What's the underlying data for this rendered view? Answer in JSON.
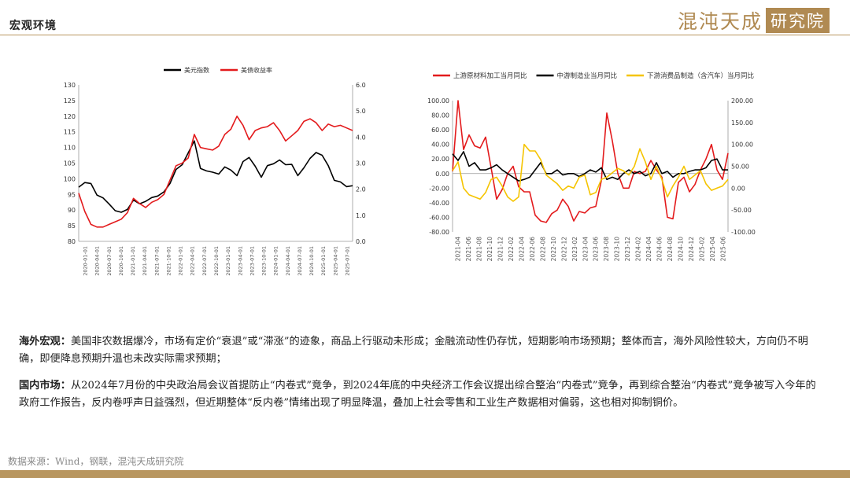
{
  "header": {
    "title": "宏观环境",
    "brand_name": "混沌天成",
    "brand_box": "研究院"
  },
  "chart_data": [
    {
      "type": "line",
      "title": "",
      "legend_position": "top-center",
      "grid": false,
      "y_left": {
        "min": 80,
        "max": 130,
        "ticks": [
          80,
          85,
          90,
          95,
          100,
          105,
          110,
          115,
          120,
          125,
          130
        ]
      },
      "y_right": {
        "min": 0,
        "max": 6,
        "ticks": [
          "0.0",
          "1.0",
          "2.0",
          "3.0",
          "4.0",
          "5.0",
          "6.0"
        ]
      },
      "x_labels": [
        "2020-01-01",
        "2020-04-01",
        "2020-07-01",
        "2020-10-01",
        "2021-01-01",
        "2021-04-01",
        "2021-07-01",
        "2021-10-01",
        "2022-01-01",
        "2022-04-01",
        "2022-07-01",
        "2022-10-01",
        "2023-01-01",
        "2023-04-01",
        "2023-07-01",
        "2023-10-01",
        "2024-01-01",
        "2024-04-01",
        "2024-07-01",
        "2024-10-01",
        "2025-01-01",
        "2025-04-01",
        "2025-07-01"
      ],
      "series": [
        {
          "name": "美元指数",
          "color": "#000000",
          "axis": "left",
          "values": [
            97.3,
            98.8,
            98.5,
            94.8,
            93.9,
            91.9,
            89.8,
            89.3,
            90.2,
            93.2,
            92.0,
            92.8,
            94.0,
            94.5,
            95.8,
            98.5,
            103.0,
            104.5,
            108.3,
            112.1,
            103.3,
            102.5,
            102.1,
            101.5,
            103.8,
            102.8,
            101.0,
            105.5,
            106.8,
            104.0,
            100.5,
            104.2,
            104.8,
            106.0,
            104.5,
            104.6,
            101.0,
            103.5,
            106.5,
            108.4,
            107.5,
            104.2,
            99.5,
            99.0,
            97.5,
            97.8
          ]
        },
        {
          "name": "美债收益率",
          "color": "#e31a1c",
          "axis": "right",
          "values": [
            1.85,
            1.15,
            0.65,
            0.55,
            0.55,
            0.65,
            0.75,
            0.85,
            1.1,
            1.65,
            1.45,
            1.3,
            1.5,
            1.6,
            1.8,
            2.35,
            2.9,
            3.0,
            3.2,
            4.1,
            3.6,
            3.55,
            3.5,
            3.65,
            4.1,
            4.3,
            4.8,
            4.45,
            3.9,
            4.25,
            4.35,
            4.4,
            4.55,
            4.25,
            3.85,
            4.05,
            4.25,
            4.6,
            4.7,
            4.55,
            4.25,
            4.5,
            4.4,
            4.45,
            4.35,
            4.25
          ]
        }
      ]
    },
    {
      "type": "line",
      "title": "",
      "legend_position": "top",
      "grid": false,
      "y_left": {
        "min": -80,
        "max": 100,
        "ticks": [
          "-80.00",
          "-60.00",
          "-40.00",
          "-20.00",
          "0.00",
          "20.00",
          "40.00",
          "60.00",
          "80.00",
          "100.00"
        ]
      },
      "y_right": {
        "min": -100,
        "max": 200,
        "ticks": [
          "-100.00",
          "-50.00",
          "0.00",
          "50.00",
          "100.00",
          "150.00",
          "200.00"
        ]
      },
      "x_labels": [
        "2021-04",
        "2021-06",
        "2021-08",
        "2021-10",
        "2021-12",
        "2022-02",
        "2022-04",
        "2022-06",
        "2022-08",
        "2022-10",
        "2022-12",
        "2023-02",
        "2023-04",
        "2023-06",
        "2023-08",
        "2023-10",
        "2023-12",
        "2024-02",
        "2024-04",
        "2024-06",
        "2024-08",
        "2024-10",
        "2024-12",
        "2025-02",
        "2025-04",
        "2025-06"
      ],
      "series": [
        {
          "name": "上游原材料加工当月同比",
          "color": "#e31a1c",
          "axis": "left",
          "values": [
            3,
            100,
            33,
            53,
            38,
            35,
            50,
            8,
            -35,
            -22,
            0,
            10,
            -18,
            -25,
            -25,
            -57,
            -65,
            -67,
            -55,
            -50,
            -35,
            -45,
            -65,
            -52,
            -54,
            -47,
            -45,
            -10,
            83,
            45,
            0,
            -20,
            -20,
            3,
            0,
            3,
            18,
            5,
            -5,
            -60,
            -62,
            -12,
            -5,
            -25,
            -15,
            5,
            20,
            40,
            5,
            -8,
            28
          ]
        },
        {
          "name": "中游制造业当月同比",
          "color": "#000000",
          "axis": "left",
          "values": [
            27,
            18,
            30,
            10,
            15,
            5,
            5,
            8,
            12,
            5,
            0,
            -5,
            -10,
            -8,
            -5,
            5,
            15,
            0,
            0,
            5,
            -2,
            0,
            0,
            -4,
            0,
            5,
            2,
            8,
            -8,
            -5,
            -8,
            0,
            5,
            0,
            3,
            -3,
            0,
            15,
            0,
            3,
            -5,
            0,
            0,
            3,
            5,
            5,
            8,
            18,
            20,
            5,
            5
          ]
        },
        {
          "name": "下游消费品制造（含汽车）当月同比",
          "color": "#f5c400",
          "axis": "right",
          "values": [
            40,
            60,
            0,
            -15,
            -20,
            -25,
            -10,
            20,
            25,
            5,
            -20,
            -30,
            -20,
            100,
            85,
            85,
            65,
            30,
            20,
            10,
            -5,
            5,
            0,
            25,
            30,
            -15,
            -10,
            20,
            25,
            35,
            45,
            40,
            30,
            50,
            90,
            60,
            20,
            50,
            20,
            -20,
            5,
            25,
            50,
            20,
            30,
            40,
            10,
            -5,
            0,
            5,
            20
          ]
        }
      ]
    }
  ],
  "paragraphs": [
    {
      "lead": "海外宏观：",
      "text": "美国非农数据爆冷，市场有定价“衰退”或“滞涨”的迹象，商品上行驱动未形成；金融流动性仍存忧，短期影响市场预期；整体而言，海外风险性较大，方向仍不明确，即便降息预期升温也未改实际需求预期；"
    },
    {
      "lead": "国内市场：",
      "text": "从2024年7月份的中央政治局会议首提防止“内卷式”竞争，到2024年底的中央经济工作会议提出综合整治“内卷式”竞争，再到综合整治“内卷式”竞争被写入今年的政府工作报告，反内卷呼声日益强烈，但近期整体“反内卷”情绪出现了明显降温，叠加上社会零售和工业生产数据相对偏弱，这也相对抑制铜价。"
    }
  ],
  "source": "数据来源：Wind，钢联，混沌天成研究院"
}
